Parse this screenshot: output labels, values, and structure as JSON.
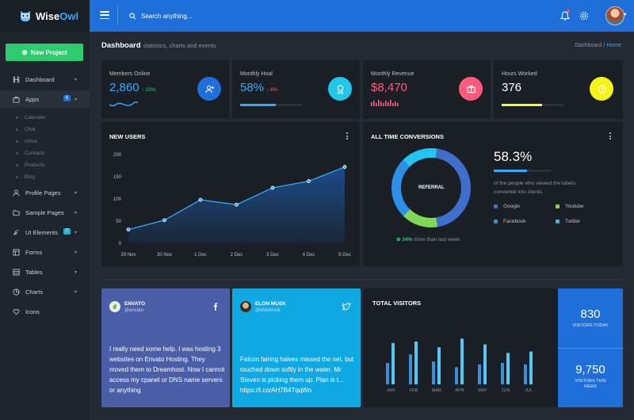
{
  "app": {
    "logo_word1": "Wise",
    "logo_word2": "Owl",
    "search_placeholder": "Search anything..."
  },
  "header": {
    "title": "Dashboard",
    "subtitle": "statistics, charts and events",
    "breadcrumb": [
      "Dashboard",
      "/",
      "Home"
    ]
  },
  "sidebar": {
    "new_project": "New Project",
    "items": [
      {
        "label": "Dashboard",
        "icon": "command-icon"
      },
      {
        "label": "Apps",
        "icon": "briefcase-icon",
        "badge": "6"
      },
      {
        "label": "Profile Pages",
        "icon": "user-icon"
      },
      {
        "label": "Sample Pages",
        "icon": "folder-icon"
      },
      {
        "label": "UI Elements",
        "icon": "feather-icon",
        "badge": "7"
      },
      {
        "label": "Forms",
        "icon": "layout-icon"
      },
      {
        "label": "Tables",
        "icon": "table-icon"
      },
      {
        "label": "Charts",
        "icon": "pie-chart-icon"
      },
      {
        "label": "Icons",
        "icon": "heart-icon"
      }
    ],
    "apps_sub": [
      "Calender",
      "Chat",
      "Inbox",
      "Contacts",
      "Products",
      "Blog"
    ]
  },
  "stats": [
    {
      "label": "Members Online",
      "value": "2,860",
      "delta": "↑ 23%",
      "color": "#35a9ff",
      "icon": "user-plus-icon"
    },
    {
      "label": "Monthly Hoal",
      "value": "58%",
      "delta": "↓ 8%",
      "color": "#35a9ff",
      "icon": "award-icon",
      "progress": 0.58
    },
    {
      "label": "Monthly Revenue",
      "value": "$8,470",
      "delta": "",
      "color": "#ff5b7b",
      "icon": "briefcase-icon"
    },
    {
      "label": "Hours Worked",
      "value": "376",
      "delta": "",
      "color": "#ffffff",
      "icon": "clock-icon",
      "progress": 0.65
    }
  ],
  "new_users": {
    "title": "NEW USERS"
  },
  "chart_data": [
    {
      "type": "area",
      "title": "NEW USERS",
      "x": [
        "29 Nov",
        "30 Nov",
        "1 Dec",
        "2 Dec",
        "3 Dec",
        "4 Dec",
        "5 Dec"
      ],
      "values": [
        31,
        52,
        98,
        87,
        125,
        140,
        172
      ],
      "yticks": [
        0,
        50,
        100,
        150,
        200
      ],
      "ylim": [
        0,
        200
      ],
      "grid": false
    },
    {
      "type": "pie",
      "title": "ALL TIME CONVERSIONS",
      "center_label": "REFERRAL",
      "categories": [
        "Google",
        "Youtube",
        "Facebook",
        "Twitter"
      ],
      "values": [
        45,
        15,
        25,
        15
      ],
      "colors": [
        "#3f6fcc",
        "#7ed957",
        "#2c8fe8",
        "#22c4f0"
      ]
    },
    {
      "type": "bar",
      "title": "TOTAL VISITORS",
      "categories": [
        "JAN",
        "FEB",
        "MAR",
        "APR",
        "MAY",
        "JUN",
        "JUL"
      ],
      "series": [
        {
          "values": [
            30,
            42,
            32,
            24,
            28,
            30,
            28
          ]
        },
        {
          "values": [
            58,
            60,
            52,
            64,
            56,
            44,
            46
          ]
        }
      ]
    }
  ],
  "conversions": {
    "title": "ALL TIME CONVERSIONS",
    "percent": "58.3%",
    "percent_value": 0.58,
    "description": "of the people who viewed the labels converted into clients.",
    "note_pct": "34%",
    "note_text": "more than last week"
  },
  "social": [
    {
      "name": "ENVATO",
      "handle": "@envato",
      "icon": "facebook-icon",
      "text": "I really need some help. I was hosting 3 websites on Envato Hosting. They moved them to Dreamhost. Now I cannot access my cpanel or DNS name servers or anything",
      "color": "#4b5fa8"
    },
    {
      "name": "ELON MUSK",
      "handle": "@elonmusk",
      "icon": "twitter-icon",
      "text": "Falcon fairing halves missed the net, but touched down softly in the water. Mr Steven is picking them up. Plan is t... https://t.co/AH7B4TqqWo",
      "color": "#0fa8e2"
    }
  ],
  "visitors": {
    "title": "TOTAL VISITORS",
    "today_value": "830",
    "today_label": "VISITORS TODAY",
    "week_value": "9,750",
    "week_label": "VISITORS THIS WEEK"
  }
}
